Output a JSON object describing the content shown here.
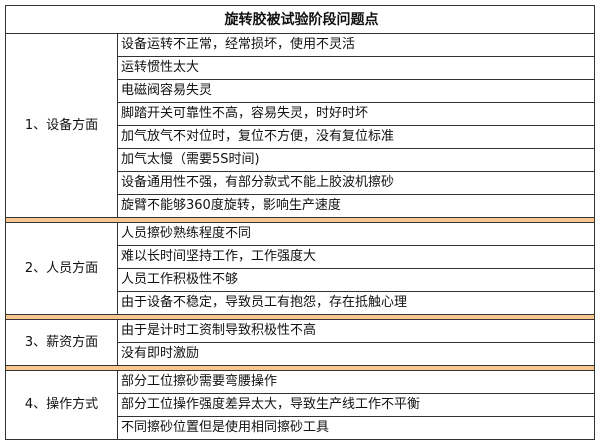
{
  "title": "旋转胶被试验阶段问题点",
  "separator_color": "#f9c68f",
  "groups": [
    {
      "label": "1、设备方面",
      "items": [
        "设备运转不正常，经常损坏，使用不灵活",
        "运转惯性太大",
        "电磁阀容易失灵",
        "脚踏开关可靠性不高，容易失灵，时好时坏",
        "加气放气不对位时，复位不方便，没有复位标准",
        "加气太慢（需要5S时间)",
        "设备通用性不强，有部分款式不能上胶波机擦砂",
        "旋臂不能够360度旋转，影响生产速度"
      ]
    },
    {
      "label": "2、人员方面",
      "items": [
        "人员擦砂熟练程度不同",
        "难以长时间坚持工作，工作强度大",
        "人员工作积极性不够",
        "由于设备不稳定，导致员工有抱怨，存在抵触心理"
      ]
    },
    {
      "label": "3、薪资方面",
      "items": [
        "由于是计时工资制导致积极性不高",
        "没有即时激励"
      ]
    },
    {
      "label": "4、操作方式",
      "items": [
        "部分工位擦砂需要弯腰操作",
        "部分工位操作强度差异太大，导致生产线工作不平衡",
        "不同擦砂位置但是使用相同擦砂工具"
      ]
    }
  ]
}
